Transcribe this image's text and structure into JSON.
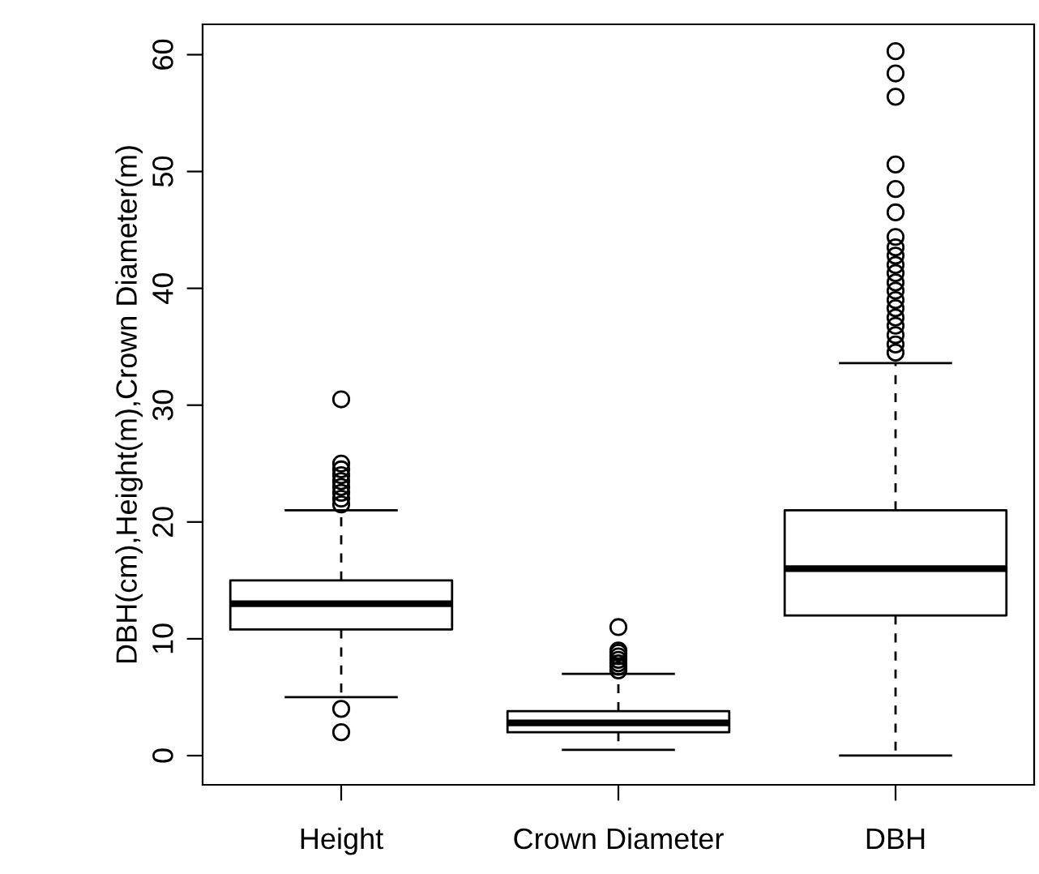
{
  "chart_data": {
    "type": "box",
    "ylabel": "DBH(cm),Height(m),Crown Diameter(m)",
    "categories": [
      "Height",
      "Crown Diameter",
      "DBH"
    ],
    "boxes": [
      {
        "low": 5,
        "q1": 10.8,
        "median": 13,
        "q3": 15,
        "high": 21,
        "outliers": [
          2,
          4,
          21.5,
          22,
          22.5,
          23,
          23.5,
          24,
          24.5,
          25,
          30.5
        ]
      },
      {
        "low": 0.5,
        "q1": 2,
        "median": 2.8,
        "q3": 3.8,
        "high": 7,
        "outliers": [
          7.3,
          7.6,
          7.9,
          8.2,
          8.5,
          8.8,
          9,
          11
        ]
      },
      {
        "low": 0,
        "q1": 12,
        "median": 16,
        "q3": 21,
        "high": 33.6,
        "outliers": [
          34.5,
          35.2,
          36,
          36.8,
          37.5,
          38.3,
          39,
          39.8,
          40.5,
          41.3,
          42,
          42.8,
          43.5,
          44.4,
          46.5,
          48.5,
          50.6,
          56.4,
          58.4,
          60.3
        ]
      }
    ],
    "ylim": [
      -2.5,
      62.6
    ],
    "yticks": [
      0,
      10,
      20,
      30,
      40,
      50,
      60
    ],
    "grid": false
  }
}
